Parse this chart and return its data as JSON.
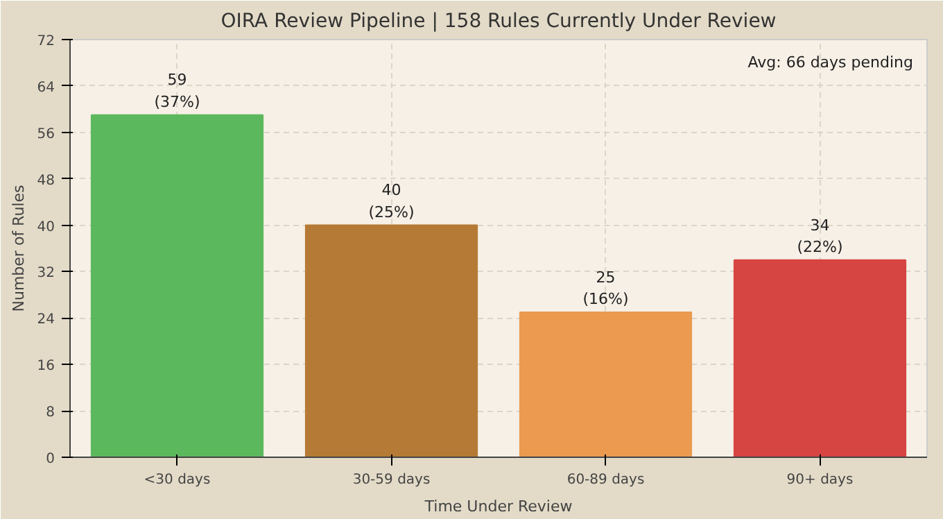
{
  "chart_data": {
    "type": "bar",
    "title": "OIRA Review Pipeline | 158 Rules Currently Under Review",
    "xlabel": "Time Under Review",
    "ylabel": "Number of Rules",
    "categories": [
      "<30 days",
      "30-59 days",
      "60-89 days",
      "90+ days"
    ],
    "values": [
      59,
      40,
      25,
      34
    ],
    "colors": [
      "#5cb85c",
      "#b57a35",
      "#eb9a50",
      "#d64541"
    ],
    "value_labels": [
      "59\n(37%)",
      "40\n(25%)",
      "25\n(16%)",
      "34\n(22%)"
    ],
    "annotations": [
      "Avg: 66 days pending"
    ],
    "ylim": [
      0,
      72
    ],
    "yticks": [
      0,
      8,
      16,
      24,
      32,
      40,
      48,
      56,
      64,
      72
    ],
    "grid": true
  }
}
